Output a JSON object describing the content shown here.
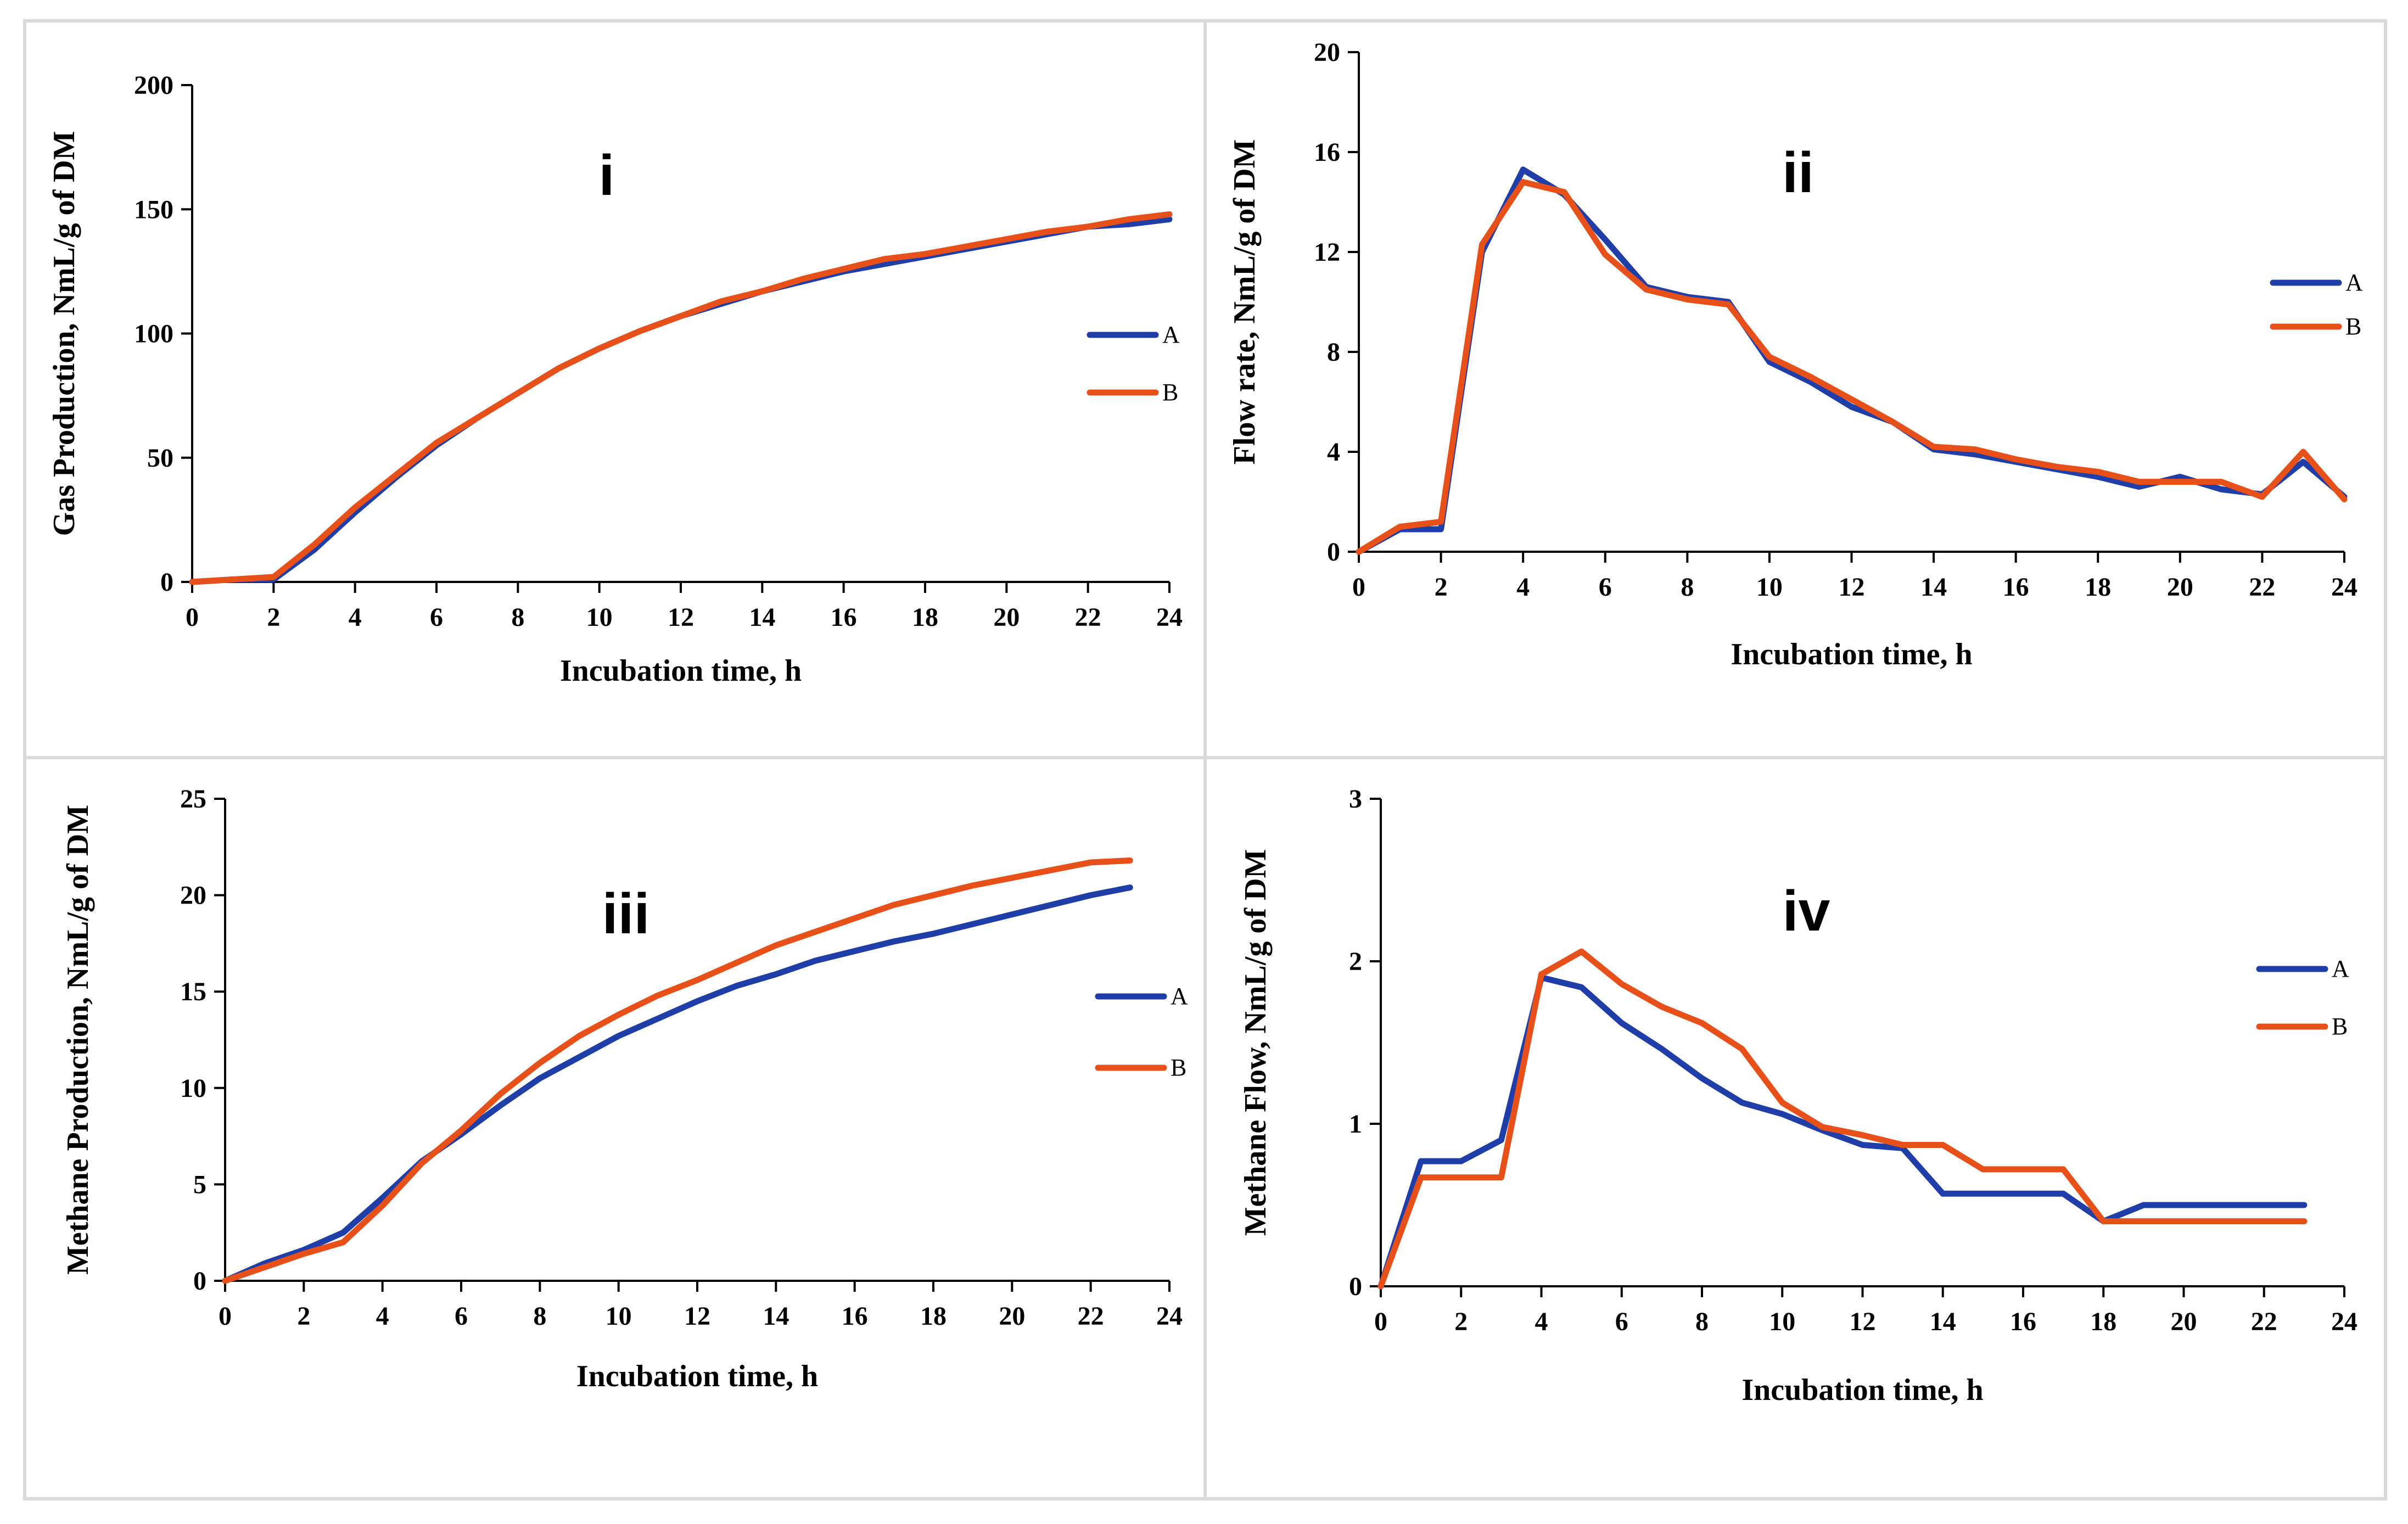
{
  "figure": {
    "background": "#ffffff",
    "frame_color": "#d9d9d9"
  },
  "colors": {
    "A": "#1f3ea8",
    "B": "#e8501a"
  },
  "chart_data": [
    {
      "id": "i",
      "type": "line",
      "panel_label": "i",
      "title": "",
      "xlabel": "Incubation time, h",
      "ylabel": "Gas Production, NmL/g of DM",
      "xlim": [
        0,
        24
      ],
      "ylim": [
        0,
        200
      ],
      "xticks": [
        0,
        2,
        4,
        6,
        8,
        10,
        12,
        14,
        16,
        18,
        20,
        22,
        24
      ],
      "yticks": [
        0,
        50,
        100,
        150,
        200
      ],
      "legend": "right",
      "series": [
        {
          "name": "A",
          "color": "#1f3ea8",
          "x": [
            0,
            1,
            2,
            3,
            4,
            5,
            6,
            7,
            8,
            9,
            10,
            11,
            12,
            13,
            14,
            15,
            16,
            17,
            18,
            19,
            20,
            21,
            22,
            23,
            24
          ],
          "y": [
            0,
            1,
            1,
            13,
            28,
            42,
            55,
            66,
            76,
            86,
            94,
            101,
            107,
            112,
            117,
            121,
            125,
            128,
            131,
            134,
            137,
            140,
            143,
            144,
            146
          ]
        },
        {
          "name": "B",
          "color": "#e8501a",
          "x": [
            0,
            1,
            2,
            3,
            4,
            5,
            6,
            7,
            8,
            9,
            10,
            11,
            12,
            13,
            14,
            15,
            16,
            17,
            18,
            19,
            20,
            21,
            22,
            23,
            24
          ],
          "y": [
            0,
            1,
            2,
            15,
            30,
            43,
            56,
            66,
            76,
            86,
            94,
            101,
            107,
            113,
            117,
            122,
            126,
            130,
            132,
            135,
            138,
            141,
            143,
            146,
            148
          ]
        }
      ]
    },
    {
      "id": "ii",
      "type": "line",
      "panel_label": "ii",
      "title": "",
      "xlabel": "Incubation time, h",
      "ylabel": "Flow rate, NmL/g of DM",
      "xlim": [
        0,
        24
      ],
      "ylim": [
        0,
        20
      ],
      "xticks": [
        0,
        2,
        4,
        6,
        8,
        10,
        12,
        14,
        16,
        18,
        20,
        22,
        24
      ],
      "yticks": [
        0,
        4,
        8,
        12,
        16,
        20
      ],
      "legend": "right",
      "series": [
        {
          "name": "A",
          "color": "#1f3ea8",
          "x": [
            0,
            1,
            2,
            3,
            4,
            5,
            6,
            7,
            8,
            9,
            10,
            11,
            12,
            13,
            14,
            15,
            16,
            17,
            18,
            19,
            20,
            21,
            22,
            23,
            24
          ],
          "y": [
            0,
            0.9,
            0.9,
            12,
            15.3,
            14.3,
            12.5,
            10.6,
            10.2,
            10,
            7.6,
            6.8,
            5.8,
            5.2,
            4.1,
            3.9,
            3.6,
            3.3,
            3,
            2.6,
            3,
            2.5,
            2.3,
            3.6,
            2.2
          ]
        },
        {
          "name": "B",
          "color": "#e8501a",
          "x": [
            0,
            1,
            2,
            3,
            4,
            5,
            6,
            7,
            8,
            9,
            10,
            11,
            12,
            13,
            14,
            15,
            16,
            17,
            18,
            19,
            20,
            21,
            22,
            23,
            24
          ],
          "y": [
            0,
            1,
            1.2,
            12.3,
            14.8,
            14.4,
            11.9,
            10.5,
            10.1,
            9.9,
            7.8,
            7,
            6.1,
            5.2,
            4.2,
            4.1,
            3.7,
            3.4,
            3.2,
            2.8,
            2.8,
            2.8,
            2.2,
            4,
            2.1
          ]
        }
      ]
    },
    {
      "id": "iii",
      "type": "line",
      "panel_label": "iii",
      "title": "",
      "xlabel": "Incubation time, h",
      "ylabel": "Methane Production, NmL/g of DM",
      "xlim": [
        0,
        24
      ],
      "ylim": [
        0,
        25
      ],
      "xticks": [
        0,
        2,
        4,
        6,
        8,
        10,
        12,
        14,
        16,
        18,
        20,
        22,
        24
      ],
      "yticks": [
        0,
        5,
        10,
        15,
        20,
        25
      ],
      "legend": "right",
      "series": [
        {
          "name": "A",
          "color": "#1f3ea8",
          "x": [
            0,
            1,
            2,
            3,
            4,
            5,
            6,
            7,
            8,
            9,
            10,
            11,
            12,
            13,
            14,
            15,
            16,
            17,
            18,
            19,
            20,
            21,
            22,
            23
          ],
          "y": [
            0,
            0.9,
            1.6,
            2.5,
            4.3,
            6.2,
            7.6,
            9.1,
            10.5,
            11.6,
            12.7,
            13.6,
            14.5,
            15.3,
            15.9,
            16.6,
            17.1,
            17.6,
            18,
            18.5,
            19,
            19.5,
            20,
            20.4
          ]
        },
        {
          "name": "B",
          "color": "#e8501a",
          "x": [
            0,
            1,
            2,
            3,
            4,
            5,
            6,
            7,
            8,
            9,
            10,
            11,
            12,
            13,
            14,
            15,
            16,
            17,
            18,
            19,
            20,
            21,
            22,
            23
          ],
          "y": [
            0,
            0.7,
            1.4,
            2,
            3.9,
            6.1,
            7.8,
            9.7,
            11.3,
            12.7,
            13.8,
            14.8,
            15.6,
            16.5,
            17.4,
            18.1,
            18.8,
            19.5,
            20,
            20.5,
            20.9,
            21.3,
            21.7,
            21.8
          ]
        }
      ]
    },
    {
      "id": "iv",
      "type": "line",
      "panel_label": "iv",
      "title": "",
      "xlabel": "Incubation time, h",
      "ylabel": "Methane Flow, NmL/g of DM",
      "xlim": [
        0,
        24
      ],
      "ylim": [
        0,
        3
      ],
      "xticks": [
        0,
        2,
        4,
        6,
        8,
        10,
        12,
        14,
        16,
        18,
        20,
        22,
        24
      ],
      "yticks": [
        0,
        1,
        2,
        3
      ],
      "legend": "right",
      "series": [
        {
          "name": "A",
          "color": "#1f3ea8",
          "x": [
            0,
            1,
            2,
            3,
            4,
            5,
            6,
            7,
            8,
            9,
            10,
            11,
            12,
            13,
            14,
            15,
            16,
            17,
            18,
            19,
            20,
            21,
            22,
            23
          ],
          "y": [
            0,
            0.77,
            0.77,
            0.9,
            1.9,
            1.84,
            1.62,
            1.46,
            1.28,
            1.13,
            1.06,
            0.96,
            0.87,
            0.85,
            0.57,
            0.57,
            0.57,
            0.57,
            0.4,
            0.5,
            0.5,
            0.5,
            0.5,
            0.5
          ]
        },
        {
          "name": "B",
          "color": "#e8501a",
          "x": [
            0,
            1,
            2,
            3,
            4,
            5,
            6,
            7,
            8,
            9,
            10,
            11,
            12,
            13,
            14,
            15,
            16,
            17,
            18,
            19,
            20,
            21,
            22,
            23
          ],
          "y": [
            0,
            0.67,
            0.67,
            0.67,
            1.92,
            2.06,
            1.86,
            1.72,
            1.62,
            1.46,
            1.13,
            0.98,
            0.93,
            0.87,
            0.87,
            0.72,
            0.72,
            0.72,
            0.4,
            0.4,
            0.4,
            0.4,
            0.4,
            0.4
          ]
        }
      ]
    }
  ]
}
